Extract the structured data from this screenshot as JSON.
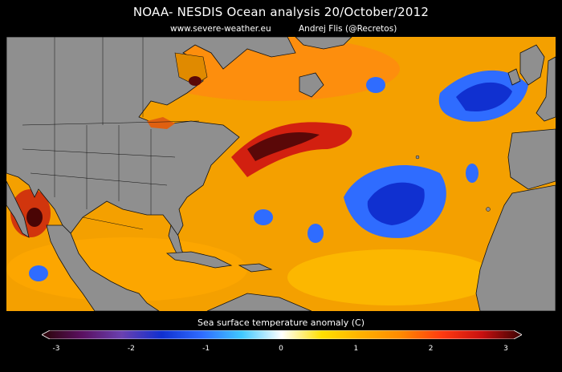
{
  "header": {
    "title": "NOAA- NESDIS Ocean analysis   20/October/2012",
    "website": "www.severe-weather.eu",
    "author": "Andrej Flis (@Recretos)"
  },
  "colorbar": {
    "title": "Sea surface temperature anomaly (C)",
    "ticks": [
      "-3",
      "-2",
      "-1",
      "0",
      "1",
      "2",
      "3"
    ],
    "range": [
      -3,
      3
    ],
    "colors": [
      "#2a0505",
      "#5a1060",
      "#6a40b0",
      "#1030d0",
      "#2f6cff",
      "#40c8ff",
      "#ffffff",
      "#ffe000",
      "#ffb000",
      "#ff8800",
      "#ff3a10",
      "#c81010",
      "#3a0303"
    ]
  },
  "map": {
    "ocean_color": "#f4a000",
    "land_color": "#8f8f8f",
    "border_color": "#111111"
  }
}
